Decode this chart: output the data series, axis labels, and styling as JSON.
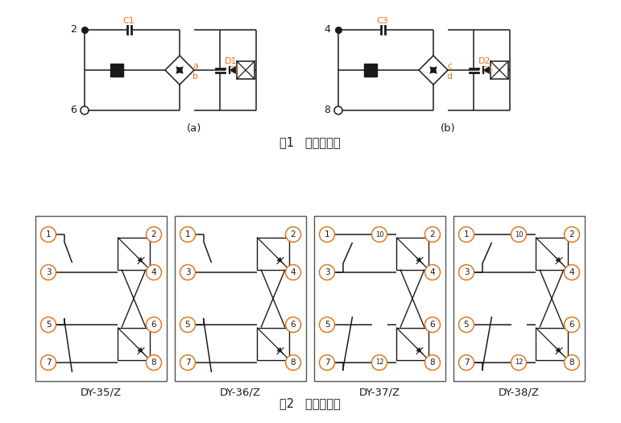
{
  "fig1_caption": "图1   内部接线图",
  "fig2_caption": "图2   端子接线图",
  "sub_a": "(a)",
  "sub_b": "(b)",
  "orange": "#E07820",
  "black": "#1a1a1a",
  "panel_labels": [
    "DY-35/Z",
    "DY-36/Z",
    "DY-37/Z",
    "DY-38/Z"
  ],
  "circ_color": "#E07820",
  "border_lw": 1.0,
  "line_lw": 1.1
}
